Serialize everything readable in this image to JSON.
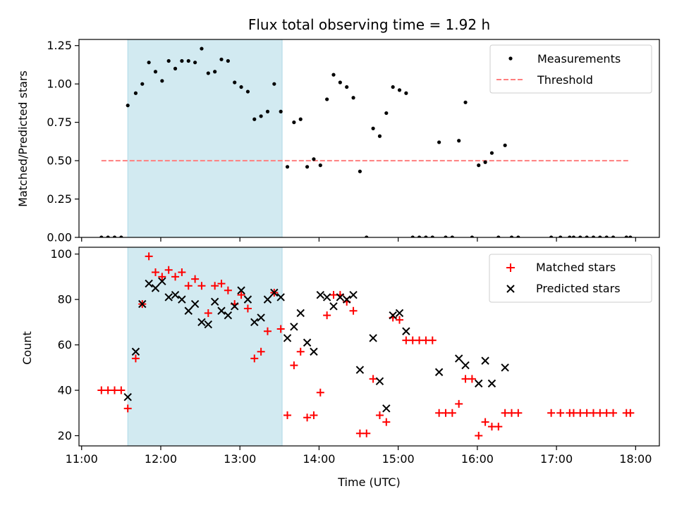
{
  "title": "Flux total observing time = 1.92 h",
  "colors": {
    "shade": "#add8e6",
    "measurement": "#000000",
    "threshold": "#ff7f7f",
    "matched": "#ff0000",
    "predicted": "#000000"
  },
  "chart_data": [
    {
      "type": "scatter",
      "ylabel": "Matched/Predicted stars",
      "xlim": [
        "10:58",
        "18:18"
      ],
      "ylim": [
        0,
        1.29
      ],
      "yticks": [
        "0.00",
        "0.25",
        "0.50",
        "0.75",
        "1.00",
        "1.25"
      ],
      "shaded_interval": [
        "11:35",
        "13:32"
      ],
      "threshold": {
        "name": "Threshold",
        "y": 0.5,
        "x_range": [
          "11:15",
          "17:56"
        ]
      },
      "legend": {
        "position": "top-right",
        "entries": [
          "Measurements",
          "Threshold"
        ]
      },
      "series": [
        {
          "name": "Measurements",
          "points": [
            [
              "11:15",
              0
            ],
            [
              "11:20",
              0
            ],
            [
              "11:25",
              0
            ],
            [
              "11:30",
              0
            ],
            [
              "11:35",
              0.86
            ],
            [
              "11:41",
              0.94
            ],
            [
              "11:46",
              1.0
            ],
            [
              "11:51",
              1.14
            ],
            [
              "11:56",
              1.08
            ],
            [
              "12:01",
              1.02
            ],
            [
              "12:06",
              1.15
            ],
            [
              "12:11",
              1.1
            ],
            [
              "12:16",
              1.15
            ],
            [
              "12:21",
              1.15
            ],
            [
              "12:26",
              1.14
            ],
            [
              "12:31",
              1.23
            ],
            [
              "12:36",
              1.07
            ],
            [
              "12:41",
              1.08
            ],
            [
              "12:46",
              1.16
            ],
            [
              "12:51",
              1.15
            ],
            [
              "12:56",
              1.01
            ],
            [
              "13:01",
              0.98
            ],
            [
              "13:06",
              0.95
            ],
            [
              "13:11",
              0.77
            ],
            [
              "13:16",
              0.79
            ],
            [
              "13:21",
              0.82
            ],
            [
              "13:26",
              1.0
            ],
            [
              "13:31",
              0.82
            ],
            [
              "13:36",
              0.46
            ],
            [
              "13:41",
              0.75
            ],
            [
              "13:46",
              0.77
            ],
            [
              "13:51",
              0.46
            ],
            [
              "13:56",
              0.51
            ],
            [
              "14:01",
              0.47
            ],
            [
              "14:06",
              0.9
            ],
            [
              "14:11",
              1.06
            ],
            [
              "14:16",
              1.01
            ],
            [
              "14:21",
              0.98
            ],
            [
              "14:26",
              0.91
            ],
            [
              "14:31",
              0.43
            ],
            [
              "14:36",
              0
            ],
            [
              "14:41",
              0.71
            ],
            [
              "14:46",
              0.66
            ],
            [
              "14:51",
              0.81
            ],
            [
              "14:56",
              0.98
            ],
            [
              "15:01",
              0.96
            ],
            [
              "15:06",
              0.94
            ],
            [
              "15:11",
              0
            ],
            [
              "15:16",
              0
            ],
            [
              "15:21",
              0
            ],
            [
              "15:26",
              0
            ],
            [
              "15:31",
              0.62
            ],
            [
              "15:36",
              0
            ],
            [
              "15:41",
              0
            ],
            [
              "15:46",
              0.63
            ],
            [
              "15:51",
              0.88
            ],
            [
              "15:56",
              0
            ],
            [
              "16:01",
              0.47
            ],
            [
              "16:06",
              0.49
            ],
            [
              "16:11",
              0.55
            ],
            [
              "16:16",
              0
            ],
            [
              "16:21",
              0.6
            ],
            [
              "16:26",
              0
            ],
            [
              "16:31",
              0
            ],
            [
              "16:56",
              0
            ],
            [
              "17:03",
              0
            ],
            [
              "17:10",
              0
            ],
            [
              "17:13",
              0
            ],
            [
              "17:18",
              0
            ],
            [
              "17:23",
              0
            ],
            [
              "17:28",
              0
            ],
            [
              "17:33",
              0
            ],
            [
              "17:38",
              0
            ],
            [
              "17:43",
              0
            ],
            [
              "17:53",
              0
            ],
            [
              "17:56",
              0
            ]
          ]
        }
      ]
    },
    {
      "type": "scatter",
      "ylabel": "Count",
      "xlabel": "Time (UTC)",
      "xlim": [
        "10:58",
        "18:18"
      ],
      "ylim": [
        15.5,
        103
      ],
      "yticks": [
        "20",
        "40",
        "60",
        "80",
        "100"
      ],
      "xticks": [
        "11:00",
        "12:00",
        "13:00",
        "14:00",
        "15:00",
        "16:00",
        "17:00",
        "18:00"
      ],
      "shaded_interval": [
        "11:35",
        "13:32"
      ],
      "legend": {
        "position": "top-right",
        "entries": [
          "Matched stars",
          "Predicted stars"
        ]
      },
      "series": [
        {
          "name": "Matched stars",
          "marker": "plus",
          "points": [
            [
              "11:15",
              40
            ],
            [
              "11:20",
              40
            ],
            [
              "11:25",
              40
            ],
            [
              "11:30",
              40
            ],
            [
              "11:35",
              32
            ],
            [
              "11:41",
              54
            ],
            [
              "11:46",
              78
            ],
            [
              "11:51",
              99
            ],
            [
              "11:56",
              92
            ],
            [
              "12:01",
              90
            ],
            [
              "12:06",
              93
            ],
            [
              "12:11",
              90
            ],
            [
              "12:16",
              92
            ],
            [
              "12:21",
              86
            ],
            [
              "12:26",
              89
            ],
            [
              "12:31",
              86
            ],
            [
              "12:36",
              74
            ],
            [
              "12:41",
              86
            ],
            [
              "12:46",
              87
            ],
            [
              "12:51",
              84
            ],
            [
              "12:56",
              78
            ],
            [
              "13:01",
              82
            ],
            [
              "13:06",
              76
            ],
            [
              "13:11",
              54
            ],
            [
              "13:16",
              57
            ],
            [
              "13:21",
              66
            ],
            [
              "13:26",
              83
            ],
            [
              "13:31",
              67
            ],
            [
              "13:36",
              29
            ],
            [
              "13:41",
              51
            ],
            [
              "13:46",
              57
            ],
            [
              "13:51",
              28
            ],
            [
              "13:56",
              29
            ],
            [
              "14:01",
              39
            ],
            [
              "14:06",
              73
            ],
            [
              "14:11",
              82
            ],
            [
              "14:16",
              82
            ],
            [
              "14:21",
              79
            ],
            [
              "14:26",
              75
            ],
            [
              "14:31",
              21
            ],
            [
              "14:36",
              21
            ],
            [
              "14:41",
              45
            ],
            [
              "14:46",
              29
            ],
            [
              "14:51",
              26
            ],
            [
              "14:56",
              72
            ],
            [
              "15:01",
              71
            ],
            [
              "15:06",
              62
            ],
            [
              "15:11",
              62
            ],
            [
              "15:16",
              62
            ],
            [
              "15:21",
              62
            ],
            [
              "15:26",
              62
            ],
            [
              "15:31",
              30
            ],
            [
              "15:36",
              30
            ],
            [
              "15:41",
              30
            ],
            [
              "15:46",
              34
            ],
            [
              "15:51",
              45
            ],
            [
              "15:56",
              45
            ],
            [
              "16:01",
              20
            ],
            [
              "16:06",
              26
            ],
            [
              "16:11",
              24
            ],
            [
              "16:16",
              24
            ],
            [
              "16:21",
              30
            ],
            [
              "16:26",
              30
            ],
            [
              "16:31",
              30
            ],
            [
              "16:56",
              30
            ],
            [
              "17:03",
              30
            ],
            [
              "17:10",
              30
            ],
            [
              "17:13",
              30
            ],
            [
              "17:18",
              30
            ],
            [
              "17:23",
              30
            ],
            [
              "17:28",
              30
            ],
            [
              "17:33",
              30
            ],
            [
              "17:38",
              30
            ],
            [
              "17:43",
              30
            ],
            [
              "17:53",
              30
            ],
            [
              "17:56",
              30
            ]
          ]
        },
        {
          "name": "Predicted stars",
          "marker": "x",
          "points": [
            [
              "11:35",
              37
            ],
            [
              "11:41",
              57
            ],
            [
              "11:46",
              78
            ],
            [
              "11:51",
              87
            ],
            [
              "11:56",
              85
            ],
            [
              "12:01",
              88
            ],
            [
              "12:06",
              81
            ],
            [
              "12:11",
              82
            ],
            [
              "12:16",
              80
            ],
            [
              "12:21",
              75
            ],
            [
              "12:26",
              78
            ],
            [
              "12:31",
              70
            ],
            [
              "12:36",
              69
            ],
            [
              "12:41",
              79
            ],
            [
              "12:46",
              75
            ],
            [
              "12:51",
              73
            ],
            [
              "12:56",
              77
            ],
            [
              "13:01",
              84
            ],
            [
              "13:06",
              80
            ],
            [
              "13:11",
              70
            ],
            [
              "13:16",
              72
            ],
            [
              "13:21",
              80
            ],
            [
              "13:26",
              83
            ],
            [
              "13:31",
              81
            ],
            [
              "13:36",
              63
            ],
            [
              "13:41",
              68
            ],
            [
              "13:46",
              74
            ],
            [
              "13:51",
              61
            ],
            [
              "13:56",
              57
            ],
            [
              "14:01",
              82
            ],
            [
              "14:06",
              81
            ],
            [
              "14:11",
              77
            ],
            [
              "14:16",
              81
            ],
            [
              "14:21",
              80
            ],
            [
              "14:26",
              82
            ],
            [
              "14:31",
              49
            ],
            [
              "14:41",
              63
            ],
            [
              "14:46",
              44
            ],
            [
              "14:51",
              32
            ],
            [
              "14:56",
              73
            ],
            [
              "15:01",
              74
            ],
            [
              "15:06",
              66
            ],
            [
              "15:31",
              48
            ],
            [
              "15:46",
              54
            ],
            [
              "15:51",
              51
            ],
            [
              "16:01",
              43
            ],
            [
              "16:06",
              53
            ],
            [
              "16:11",
              43
            ],
            [
              "16:21",
              50
            ]
          ]
        }
      ]
    }
  ]
}
